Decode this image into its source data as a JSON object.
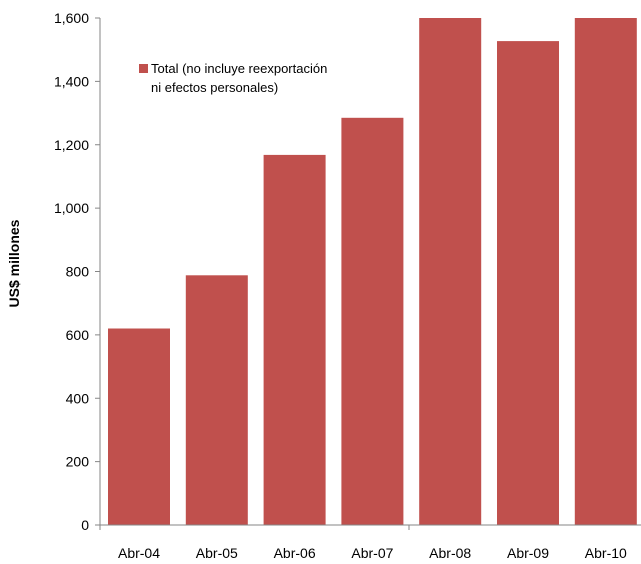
{
  "chart_data": {
    "type": "bar",
    "categories": [
      "Abr-04",
      "Abr-05",
      "Abr-06",
      "Abr-07",
      "Abr-08",
      "Abr-09",
      "Abr-10"
    ],
    "series": [
      {
        "name": "Total (no incluye reexportación ni efectos personales)",
        "name_lines": [
          "Total (no incluye reexportación",
          "ni efectos personales)"
        ],
        "values": [
          620,
          788,
          1168,
          1285,
          1600,
          1527,
          1600
        ],
        "color": "#C0504D"
      }
    ],
    "ylabel": "US$ millones",
    "ylim": [
      0,
      1600
    ],
    "yticks": [
      0,
      200,
      400,
      600,
      800,
      1000,
      1200,
      1400,
      1600
    ],
    "ytick_labels": [
      "0",
      "200",
      "400",
      "600",
      "800",
      "1,000",
      "1,200",
      "1,400",
      "1,600"
    ],
    "grid": false,
    "legend_position": "top-left"
  }
}
